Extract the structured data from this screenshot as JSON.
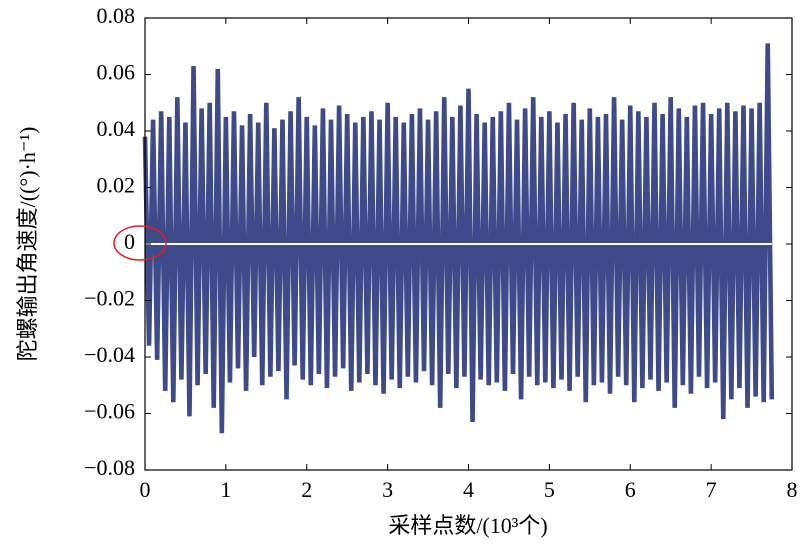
{
  "chart_data": {
    "type": "line",
    "y_label": "陀螺输出角速度/((°)·h⁻¹)",
    "x_label": "采样点数/(10³个)",
    "x": [
      0,
      0.05,
      0.1,
      0.15,
      0.2,
      0.25,
      0.3,
      0.35,
      0.4,
      0.45,
      0.5,
      0.55,
      0.6,
      0.65,
      0.7,
      0.75,
      0.8,
      0.85,
      0.9,
      0.95,
      1,
      1.05,
      1.1,
      1.15,
      1.2,
      1.25,
      1.3,
      1.35,
      1.4,
      1.45,
      1.5,
      1.55,
      1.6,
      1.65,
      1.7,
      1.75,
      1.8,
      1.85,
      1.9,
      1.95,
      2,
      2.05,
      2.1,
      2.15,
      2.2,
      2.25,
      2.3,
      2.35,
      2.4,
      2.45,
      2.5,
      2.55,
      2.6,
      2.65,
      2.7,
      2.75,
      2.8,
      2.85,
      2.9,
      2.95,
      3,
      3.05,
      3.1,
      3.15,
      3.2,
      3.25,
      3.3,
      3.35,
      3.4,
      3.45,
      3.5,
      3.55,
      3.6,
      3.65,
      3.7,
      3.75,
      3.8,
      3.85,
      3.9,
      3.95,
      4,
      4.05,
      4.1,
      4.15,
      4.2,
      4.25,
      4.3,
      4.35,
      4.4,
      4.45,
      4.5,
      4.55,
      4.6,
      4.65,
      4.7,
      4.75,
      4.8,
      4.85,
      4.9,
      4.95,
      5,
      5.05,
      5.1,
      5.15,
      5.2,
      5.25,
      5.3,
      5.35,
      5.4,
      5.45,
      5.5,
      5.55,
      5.6,
      5.65,
      5.7,
      5.75,
      5.8,
      5.85,
      5.9,
      5.95,
      6,
      6.05,
      6.1,
      6.15,
      6.2,
      6.25,
      6.3,
      6.35,
      6.4,
      6.45,
      6.5,
      6.55,
      6.6,
      6.65,
      6.7,
      6.75,
      6.8,
      6.85,
      6.9,
      6.95,
      7,
      7.05,
      7.1,
      7.15,
      7.2,
      7.25,
      7.3,
      7.35,
      7.4,
      7.45,
      7.5,
      7.55,
      7.6,
      7.65,
      7.7,
      7.75
    ],
    "series": [
      {
        "color": "#3f4a8a",
        "values": [
          0.038,
          -0.036,
          0.044,
          -0.041,
          0.047,
          -0.052,
          0.045,
          -0.056,
          0.052,
          -0.048,
          0.043,
          -0.061,
          0.063,
          -0.05,
          0.048,
          -0.046,
          0.05,
          -0.058,
          0.062,
          -0.067,
          0.045,
          -0.049,
          0.047,
          -0.044,
          0.042,
          -0.052,
          0.046,
          -0.04,
          0.043,
          -0.05,
          0.05,
          -0.047,
          0.041,
          -0.045,
          0.044,
          -0.055,
          0.047,
          -0.043,
          0.052,
          -0.048,
          0.045,
          -0.05,
          0.042,
          -0.046,
          0.048,
          -0.051,
          0.044,
          -0.047,
          0.049,
          -0.044,
          0.046,
          -0.052,
          0.043,
          -0.049,
          0.045,
          -0.046,
          0.047,
          -0.05,
          0.044,
          -0.053,
          0.05,
          -0.048,
          0.045,
          -0.051,
          0.043,
          -0.047,
          0.046,
          -0.049,
          0.048,
          -0.045,
          0.044,
          -0.05,
          0.047,
          -0.058,
          0.052,
          -0.046,
          0.045,
          -0.051,
          0.049,
          -0.047,
          0.055,
          -0.063,
          0.046,
          -0.048,
          0.043,
          -0.05,
          0.045,
          -0.049,
          0.047,
          -0.052,
          0.05,
          -0.046,
          0.044,
          -0.055,
          0.048,
          -0.047,
          0.052,
          -0.05,
          0.045,
          -0.049,
          0.047,
          -0.051,
          0.043,
          -0.048,
          0.046,
          -0.052,
          0.05,
          -0.047,
          0.044,
          -0.056,
          0.048,
          -0.05,
          0.045,
          -0.049,
          0.046,
          -0.053,
          0.052,
          -0.047,
          0.044,
          -0.05,
          0.049,
          -0.056,
          0.047,
          -0.051,
          0.045,
          -0.048,
          0.05,
          -0.052,
          0.046,
          -0.049,
          0.052,
          -0.058,
          0.048,
          -0.05,
          0.045,
          -0.053,
          0.049,
          -0.047,
          0.05,
          -0.051,
          0.046,
          -0.049,
          0.048,
          -0.062,
          0.05,
          -0.055,
          0.047,
          -0.051,
          0.049,
          -0.058,
          0.048,
          -0.054,
          0.05,
          -0.056,
          0.071,
          -0.055
        ]
      }
    ],
    "xlim": [
      0,
      8
    ],
    "xticks": [
      0,
      1,
      2,
      3,
      4,
      5,
      6,
      7,
      8
    ],
    "ylim": [
      -0.08,
      0.08
    ],
    "yticks": [
      {
        "value": -0.08,
        "label": "−0.08"
      },
      {
        "value": -0.06,
        "label": "−0.06"
      },
      {
        "value": -0.04,
        "label": "−0.04"
      },
      {
        "value": -0.02,
        "label": "−0.02"
      },
      0,
      0.02,
      0.04,
      0.06,
      0.08
    ]
  }
}
